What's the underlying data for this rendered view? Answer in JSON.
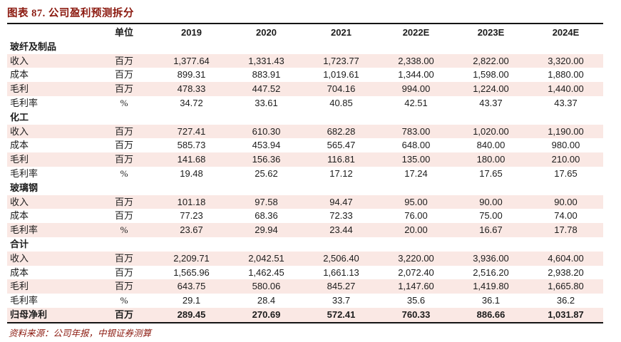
{
  "title": "图表 87. 公司盈利预测拆分",
  "source": "资料来源：公司年报，中银证券测算",
  "colors": {
    "accent": "#8b190f",
    "row_stripe": "#fae8e4",
    "rule": "#141414"
  },
  "table": {
    "unit_header": "单位",
    "year_headers": [
      "2019",
      "2020",
      "2021",
      "2022E",
      "2023E",
      "2024E"
    ],
    "sections": [
      {
        "name": "玻纤及制品",
        "rows": [
          {
            "label": "收入",
            "unit": "百万",
            "values": [
              "1,377.64",
              "1,331.43",
              "1,723.77",
              "2,338.00",
              "2,822.00",
              "3,320.00"
            ]
          },
          {
            "label": "成本",
            "unit": "百万",
            "values": [
              "899.31",
              "883.91",
              "1,019.61",
              "1,344.00",
              "1,598.00",
              "1,880.00"
            ]
          },
          {
            "label": "毛利",
            "unit": "百万",
            "values": [
              "478.33",
              "447.52",
              "704.16",
              "994.00",
              "1,224.00",
              "1,440.00"
            ]
          },
          {
            "label": "毛利率",
            "unit": "%",
            "values": [
              "34.72",
              "33.61",
              "40.85",
              "42.51",
              "43.37",
              "43.37"
            ]
          }
        ]
      },
      {
        "name": "化工",
        "rows": [
          {
            "label": "收入",
            "unit": "百万",
            "values": [
              "727.41",
              "610.30",
              "682.28",
              "783.00",
              "1,020.00",
              "1,190.00"
            ]
          },
          {
            "label": "成本",
            "unit": "百万",
            "values": [
              "585.73",
              "453.94",
              "565.47",
              "648.00",
              "840.00",
              "980.00"
            ]
          },
          {
            "label": "毛利",
            "unit": "百万",
            "values": [
              "141.68",
              "156.36",
              "116.81",
              "135.00",
              "180.00",
              "210.00"
            ]
          },
          {
            "label": "毛利率",
            "unit": "%",
            "values": [
              "19.48",
              "25.62",
              "17.12",
              "17.24",
              "17.65",
              "17.65"
            ]
          }
        ]
      },
      {
        "name": "玻璃钢",
        "rows": [
          {
            "label": "收入",
            "unit": "百万",
            "values": [
              "101.18",
              "97.58",
              "94.47",
              "95.00",
              "90.00",
              "90.00"
            ]
          },
          {
            "label": "成本",
            "unit": "百万",
            "values": [
              "77.23",
              "68.36",
              "72.33",
              "76.00",
              "75.00",
              "74.00"
            ]
          },
          {
            "label": "毛利率",
            "unit": "%",
            "values": [
              "23.67",
              "29.94",
              "23.44",
              "20.00",
              "16.67",
              "17.78"
            ]
          }
        ]
      },
      {
        "name": "合计",
        "rows": [
          {
            "label": "收入",
            "unit": "百万",
            "values": [
              "2,209.71",
              "2,042.51",
              "2,506.40",
              "3,220.00",
              "3,936.00",
              "4,604.00"
            ]
          },
          {
            "label": "成本",
            "unit": "百万",
            "values": [
              "1,565.96",
              "1,462.45",
              "1,661.13",
              "2,072.40",
              "2,516.20",
              "2,938.20"
            ]
          },
          {
            "label": "毛利",
            "unit": "百万",
            "values": [
              "643.75",
              "580.06",
              "845.27",
              "1,147.60",
              "1,419.80",
              "1,665.80"
            ]
          },
          {
            "label": "毛利率",
            "unit": "%",
            "values": [
              "29.1",
              "28.4",
              "33.7",
              "35.6",
              "36.1",
              "36.2"
            ]
          },
          {
            "label": "归母净利",
            "unit": "百万",
            "values": [
              "289.45",
              "270.69",
              "572.41",
              "760.33",
              "886.66",
              "1,031.87"
            ],
            "bold": true
          }
        ]
      }
    ]
  }
}
